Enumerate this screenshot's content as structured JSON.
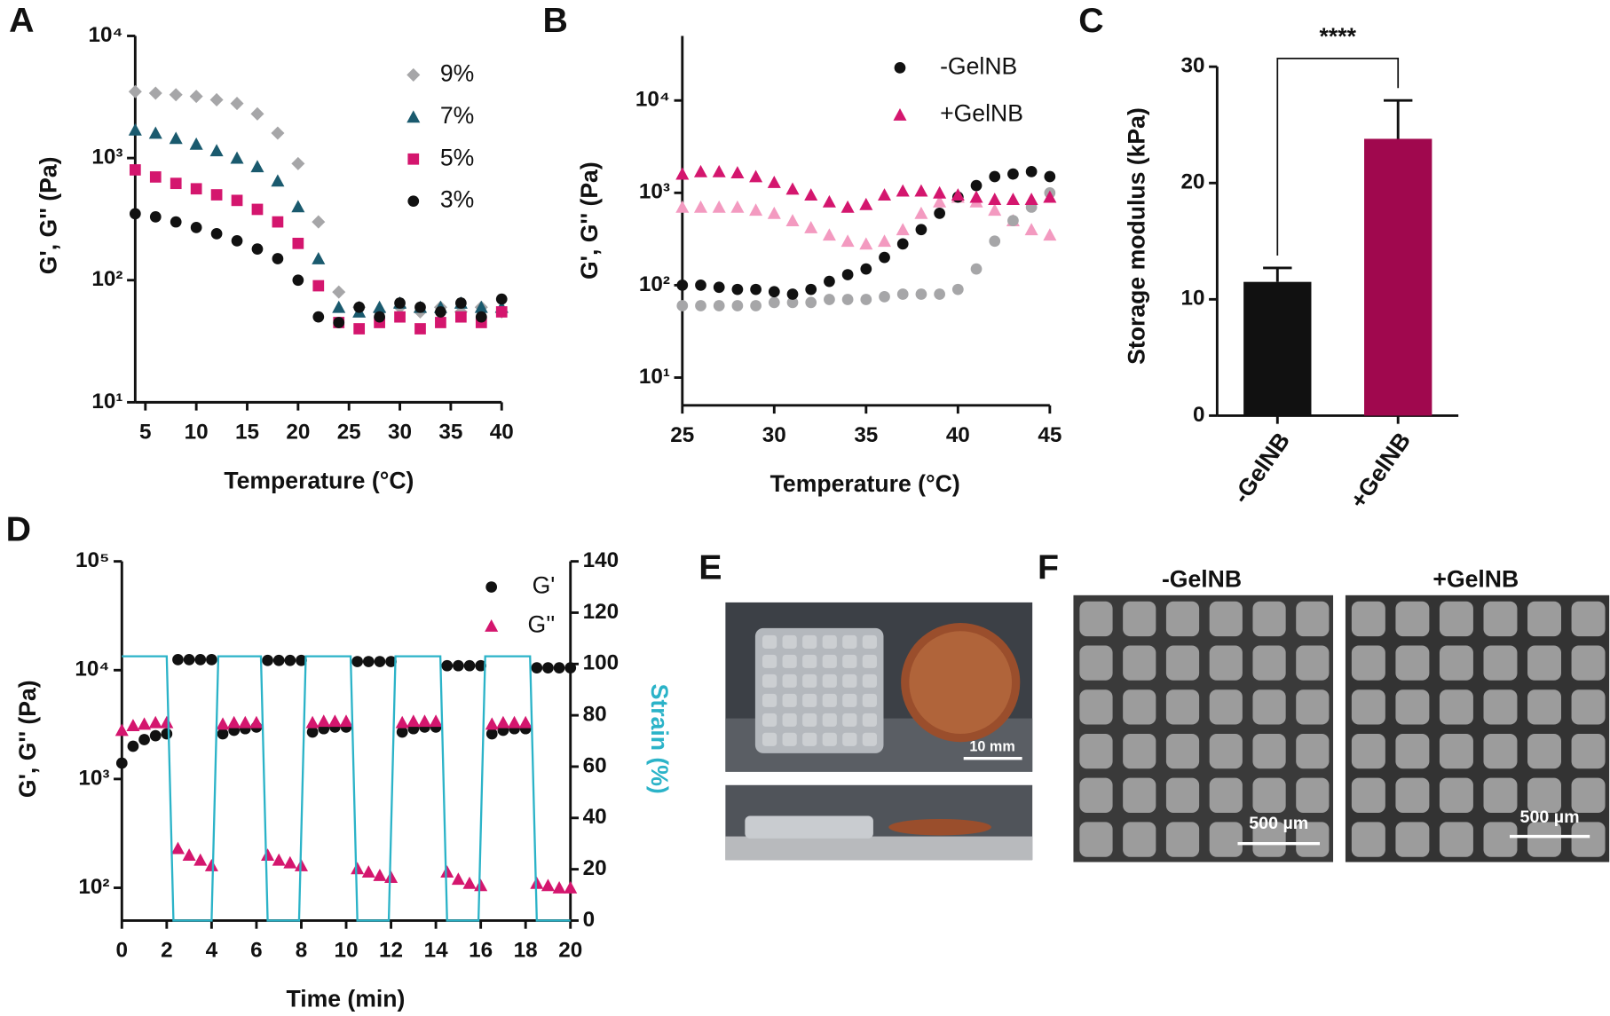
{
  "chart_data": [
    {
      "type": "scatter",
      "panel": "A",
      "xlabel": "Temperature (°C)",
      "ylabel": "G', G'' (Pa)",
      "ylog": true,
      "xlim": [
        4,
        40
      ],
      "xticks": [
        5,
        10,
        15,
        20,
        25,
        30,
        35,
        40
      ],
      "ylim": [
        10,
        10000
      ],
      "yticks": [
        {
          "value": 10,
          "label": "10¹"
        },
        {
          "value": 100,
          "label": "10²"
        },
        {
          "value": 1000,
          "label": "10³"
        },
        {
          "value": 10000,
          "label": "10⁴"
        }
      ],
      "legend": "upper right",
      "x": [
        4,
        6,
        8,
        10,
        12,
        14,
        16,
        18,
        20,
        22,
        24,
        26,
        28,
        30,
        32,
        34,
        36,
        38,
        40
      ],
      "series": [
        {
          "name": "9%",
          "color": "#a6a6a8",
          "marker": "diamond",
          "values": [
            3500,
            3400,
            3300,
            3200,
            3000,
            2800,
            2300,
            1600,
            900,
            300,
            80,
            60,
            55,
            60,
            55,
            60,
            55,
            60,
            55
          ]
        },
        {
          "name": "7%",
          "color": "#1a5a6e",
          "marker": "triangle",
          "values": [
            1700,
            1600,
            1450,
            1300,
            1150,
            1000,
            850,
            650,
            400,
            150,
            60,
            55,
            60,
            65,
            60,
            60,
            65,
            60,
            60
          ]
        },
        {
          "name": "5%",
          "color": "#d4166e",
          "marker": "square",
          "values": [
            800,
            700,
            620,
            560,
            500,
            450,
            380,
            300,
            200,
            90,
            45,
            40,
            45,
            50,
            40,
            45,
            50,
            45,
            55
          ]
        },
        {
          "name": "3%",
          "color": "#111111",
          "marker": "circle",
          "values": [
            350,
            330,
            300,
            270,
            240,
            210,
            180,
            150,
            100,
            50,
            45,
            60,
            50,
            65,
            60,
            55,
            65,
            50,
            70
          ]
        }
      ]
    },
    {
      "type": "scatter",
      "panel": "B",
      "xlabel": "Temperature (°C)",
      "ylabel": "G', G'' (Pa)",
      "ylog": true,
      "xlim": [
        25,
        45
      ],
      "xticks": [
        25,
        30,
        35,
        40,
        45
      ],
      "ylim": [
        5,
        50000
      ],
      "yticks": [
        {
          "value": 10,
          "label": "10¹"
        },
        {
          "value": 100,
          "label": "10²"
        },
        {
          "value": 1000,
          "label": "10³"
        },
        {
          "value": 10000,
          "label": "10⁴"
        }
      ],
      "legend": "upper right",
      "x": [
        25,
        26,
        27,
        28,
        29,
        30,
        31,
        32,
        33,
        34,
        35,
        36,
        37,
        38,
        39,
        40,
        41,
        42,
        43,
        44,
        45
      ],
      "series": [
        {
          "color": "#f39ac0",
          "marker": "triangle",
          "values": [
            700,
            700,
            700,
            700,
            650,
            600,
            500,
            420,
            350,
            300,
            280,
            300,
            400,
            600,
            800,
            900,
            800,
            650,
            500,
            400,
            350
          ]
        },
        {
          "color": "#a6a6a8",
          "marker": "circle",
          "values": [
            60,
            60,
            60,
            60,
            60,
            65,
            65,
            65,
            70,
            70,
            70,
            75,
            80,
            80,
            80,
            90,
            150,
            300,
            500,
            700,
            1000
          ]
        },
        {
          "name": "-GelNB",
          "color": "#111111",
          "marker": "circle",
          "values": [
            100,
            100,
            95,
            90,
            90,
            85,
            80,
            90,
            110,
            130,
            150,
            200,
            280,
            400,
            600,
            900,
            1200,
            1500,
            1600,
            1700,
            1500
          ]
        },
        {
          "name": "+GelNB",
          "color": "#d4166e",
          "marker": "triangle",
          "values": [
            1600,
            1700,
            1700,
            1650,
            1500,
            1300,
            1100,
            950,
            800,
            700,
            750,
            950,
            1050,
            1050,
            1000,
            950,
            900,
            850,
            850,
            850,
            900
          ]
        }
      ]
    },
    {
      "type": "bar",
      "panel": "C",
      "ylabel": "Storage modulus (kPa)",
      "categories": [
        "-GelNB",
        "+GelNB"
      ],
      "values": [
        11.5,
        23.8
      ],
      "errors": [
        1.2,
        3.3
      ],
      "colors": [
        "#111111",
        "#a0084e"
      ],
      "ylim": [
        0,
        30
      ],
      "yticks": [
        0,
        10,
        20,
        30
      ],
      "annotation": "****"
    },
    {
      "type": "scatter",
      "panel": "D",
      "xlabel": "Time (min)",
      "ylabel": "G', G'' (Pa)",
      "y2label": "Strain (%)",
      "y2color": "#2bb3c8",
      "ylog": true,
      "xlim": [
        0,
        20
      ],
      "xticks": [
        0,
        2,
        4,
        6,
        8,
        10,
        12,
        14,
        16,
        18,
        20
      ],
      "ylim": [
        50,
        100000
      ],
      "yticks": [
        {
          "value": 100,
          "label": "10²"
        },
        {
          "value": 1000,
          "label": "10³"
        },
        {
          "value": 10000,
          "label": "10⁴"
        },
        {
          "value": 100000,
          "label": "10⁵"
        }
      ],
      "y2lim": [
        0,
        140
      ],
      "y2ticks": [
        0,
        20,
        40,
        60,
        80,
        100,
        120,
        140
      ],
      "legend": "upper right",
      "series": [
        {
          "name": "G'",
          "color": "#111111",
          "marker": "circle",
          "x": [
            0,
            0.5,
            1,
            1.5,
            2,
            2.5,
            3,
            3.5,
            4,
            4.5,
            5,
            5.5,
            6,
            6.5,
            7,
            7.5,
            8,
            8.5,
            9,
            9.5,
            10,
            10.5,
            11,
            11.5,
            12,
            12.5,
            13,
            13.5,
            14,
            14.5,
            15,
            15.5,
            16,
            16.5,
            17,
            17.5,
            18,
            18.5,
            19,
            19.5,
            20
          ],
          "values": [
            1400,
            2000,
            2300,
            2500,
            2600,
            12500,
            12500,
            12500,
            12500,
            2600,
            2800,
            2900,
            3000,
            12300,
            12300,
            12300,
            12300,
            2700,
            2900,
            3000,
            3000,
            12000,
            12000,
            12000,
            12000,
            2700,
            2900,
            3000,
            3000,
            11000,
            11000,
            11000,
            11000,
            2600,
            2800,
            2900,
            2900,
            10500,
            10500,
            10500,
            10500
          ]
        },
        {
          "name": "G''",
          "color": "#d4166e",
          "marker": "triangle",
          "x": [
            0,
            0.5,
            1,
            1.5,
            2,
            2.5,
            3,
            3.5,
            4,
            4.5,
            5,
            5.5,
            6,
            6.5,
            7,
            7.5,
            8,
            8.5,
            9,
            9.5,
            10,
            10.5,
            11,
            11.5,
            12,
            12.5,
            13,
            13.5,
            14,
            14.5,
            15,
            15.5,
            16,
            16.5,
            17,
            17.5,
            18,
            18.5,
            19,
            19.5,
            20
          ],
          "values": [
            2800,
            3100,
            3200,
            3300,
            3300,
            230,
            200,
            180,
            160,
            3200,
            3300,
            3300,
            3300,
            200,
            180,
            170,
            160,
            3300,
            3400,
            3400,
            3400,
            150,
            140,
            130,
            125,
            3300,
            3400,
            3400,
            3400,
            140,
            120,
            110,
            105,
            3200,
            3300,
            3300,
            3300,
            110,
            105,
            100,
            100
          ]
        },
        {
          "type": "line",
          "axis": "y2",
          "color": "#2bb3c8",
          "x": [
            0,
            2,
            2.3,
            4,
            4.3,
            6.2,
            6.5,
            7.9,
            8.2,
            10.2,
            10.5,
            11.9,
            12.2,
            14.2,
            14.5,
            15.9,
            16.2,
            18.2,
            18.5,
            20
          ],
          "values": [
            103,
            103,
            0,
            0,
            103,
            103,
            0,
            0,
            103,
            103,
            0,
            0,
            103,
            103,
            0,
            0,
            103,
            103,
            0,
            0
          ]
        }
      ]
    }
  ],
  "panels": [
    {
      "label": "E",
      "scale_bar": "10 mm"
    },
    {
      "label": "F",
      "images": [
        "-GelNB",
        "+GelNB"
      ],
      "scale_bar": "500 µm"
    }
  ]
}
